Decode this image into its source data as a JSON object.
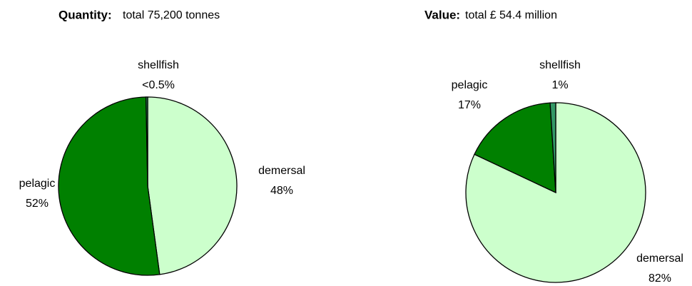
{
  "chart_data": [
    {
      "type": "pie",
      "title": "Quantity:",
      "subtitle": "total 75,200 tonnes",
      "categories": [
        "demersal",
        "pelagic",
        "shellfish"
      ],
      "values": [
        48,
        52,
        0.3
      ],
      "value_labels": [
        "48%",
        "52%",
        "<0.5%"
      ],
      "colors": [
        "#ccffcc",
        "#008000",
        "#339966"
      ]
    },
    {
      "type": "pie",
      "title": "Value:",
      "subtitle": "total £ 54.4 million",
      "categories": [
        "demersal",
        "pelagic",
        "shellfish"
      ],
      "values": [
        82,
        17,
        1
      ],
      "value_labels": [
        "82%",
        "17%",
        "1%"
      ],
      "colors": [
        "#ccffcc",
        "#008000",
        "#339966"
      ]
    }
  ]
}
